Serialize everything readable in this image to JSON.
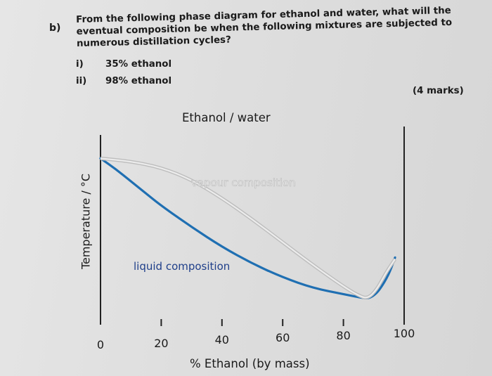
{
  "question": {
    "label": "b)",
    "text": "From the following phase diagram for ethanol and water, what will the eventual composition be when the following mixtures are subjected to numerous distillation cycles?",
    "items": [
      {
        "num": "i)",
        "text": "35% ethanol"
      },
      {
        "num": "ii)",
        "text": "98% ethanol"
      }
    ],
    "marks": "(4 marks)"
  },
  "chart_data": {
    "type": "line",
    "title": "Ethanol / water",
    "xlabel": "% Ethanol (by mass)",
    "ylabel": "Temperature / °C",
    "xlim": [
      0,
      100
    ],
    "xticks": [
      0,
      20,
      40,
      60,
      80,
      100
    ],
    "grid": false,
    "series": [
      {
        "name": "liquid composition",
        "color": "#1f6fb2",
        "x": [
          0,
          5,
          10,
          15,
          20,
          30,
          40,
          50,
          60,
          70,
          80,
          85,
          88,
          90,
          92,
          95,
          97
        ],
        "y": [
          0.92,
          0.85,
          0.77,
          0.69,
          0.61,
          0.47,
          0.34,
          0.23,
          0.14,
          0.07,
          0.03,
          0.01,
          0.0,
          0.02,
          0.06,
          0.16,
          0.27
        ]
      },
      {
        "name": "vapour composition",
        "color": "#c8c8c8",
        "x": [
          0,
          10,
          20,
          30,
          40,
          50,
          60,
          70,
          80,
          85,
          88,
          91,
          94,
          97
        ],
        "y": [
          0.92,
          0.9,
          0.86,
          0.78,
          0.66,
          0.52,
          0.37,
          0.22,
          0.08,
          0.02,
          0.0,
          0.06,
          0.17,
          0.26
        ]
      }
    ],
    "annotations": [
      "liquid composition",
      "vapour composition"
    ]
  }
}
